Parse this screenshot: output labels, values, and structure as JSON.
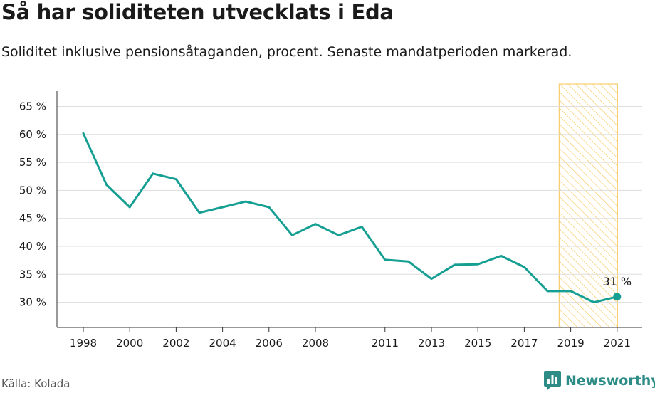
{
  "header": {
    "title": "Så har soliditeten utvecklats i Eda",
    "subtitle": "Soliditet inklusive pensionsåtaganden, procent. Senaste mandatperioden markerad."
  },
  "footer": {
    "source": "Källa: Kolada",
    "brand": "Newsworthy"
  },
  "colors": {
    "line": "#159f93",
    "highlight_fill": "#fbe7a6",
    "highlight_stroke": "#f5c451",
    "grid": "#dddddd",
    "axis": "#333333",
    "brand": "#2d8c86"
  },
  "chart_data": {
    "type": "line",
    "title": "Så har soliditeten utvecklats i Eda",
    "subtitle": "Soliditet inklusive pensionsåtaganden, procent. Senaste mandatperioden markerad.",
    "xlabel": "",
    "ylabel": "",
    "x": [
      1998,
      1999,
      2000,
      2001,
      2002,
      2003,
      2004,
      2005,
      2006,
      2007,
      2008,
      2009,
      2010,
      2011,
      2012,
      2013,
      2014,
      2015,
      2016,
      2017,
      2018,
      2019,
      2020,
      2021
    ],
    "series": [
      {
        "values": [
          60.2,
          51,
          47,
          53,
          52,
          46,
          47,
          48,
          47,
          42,
          44,
          42,
          43.5,
          37.6,
          37.3,
          34.2,
          36.7,
          36.8,
          38.3,
          36.3,
          32,
          32,
          30,
          31
        ]
      }
    ],
    "xticks": [
      1998,
      2000,
      2002,
      2004,
      2006,
      2008,
      2011,
      2013,
      2015,
      2017,
      2019,
      2021
    ],
    "xtick_labels": [
      "1998",
      "2000",
      "2002",
      "2004",
      "2006",
      "2008",
      "2011",
      "2013",
      "2015",
      "2017",
      "2019",
      "2021"
    ],
    "yticks": [
      30,
      35,
      40,
      45,
      50,
      55,
      60,
      65
    ],
    "ytick_labels": [
      "30 %",
      "35 %",
      "40 %",
      "45 %",
      "50 %",
      "55 %",
      "60 %",
      "65 %"
    ],
    "ylim": [
      25.5,
      69
    ],
    "xlim": [
      1997,
      2022
    ],
    "grid": true,
    "highlight_period": [
      2018.5,
      2021
    ],
    "end_label": "31 %"
  }
}
